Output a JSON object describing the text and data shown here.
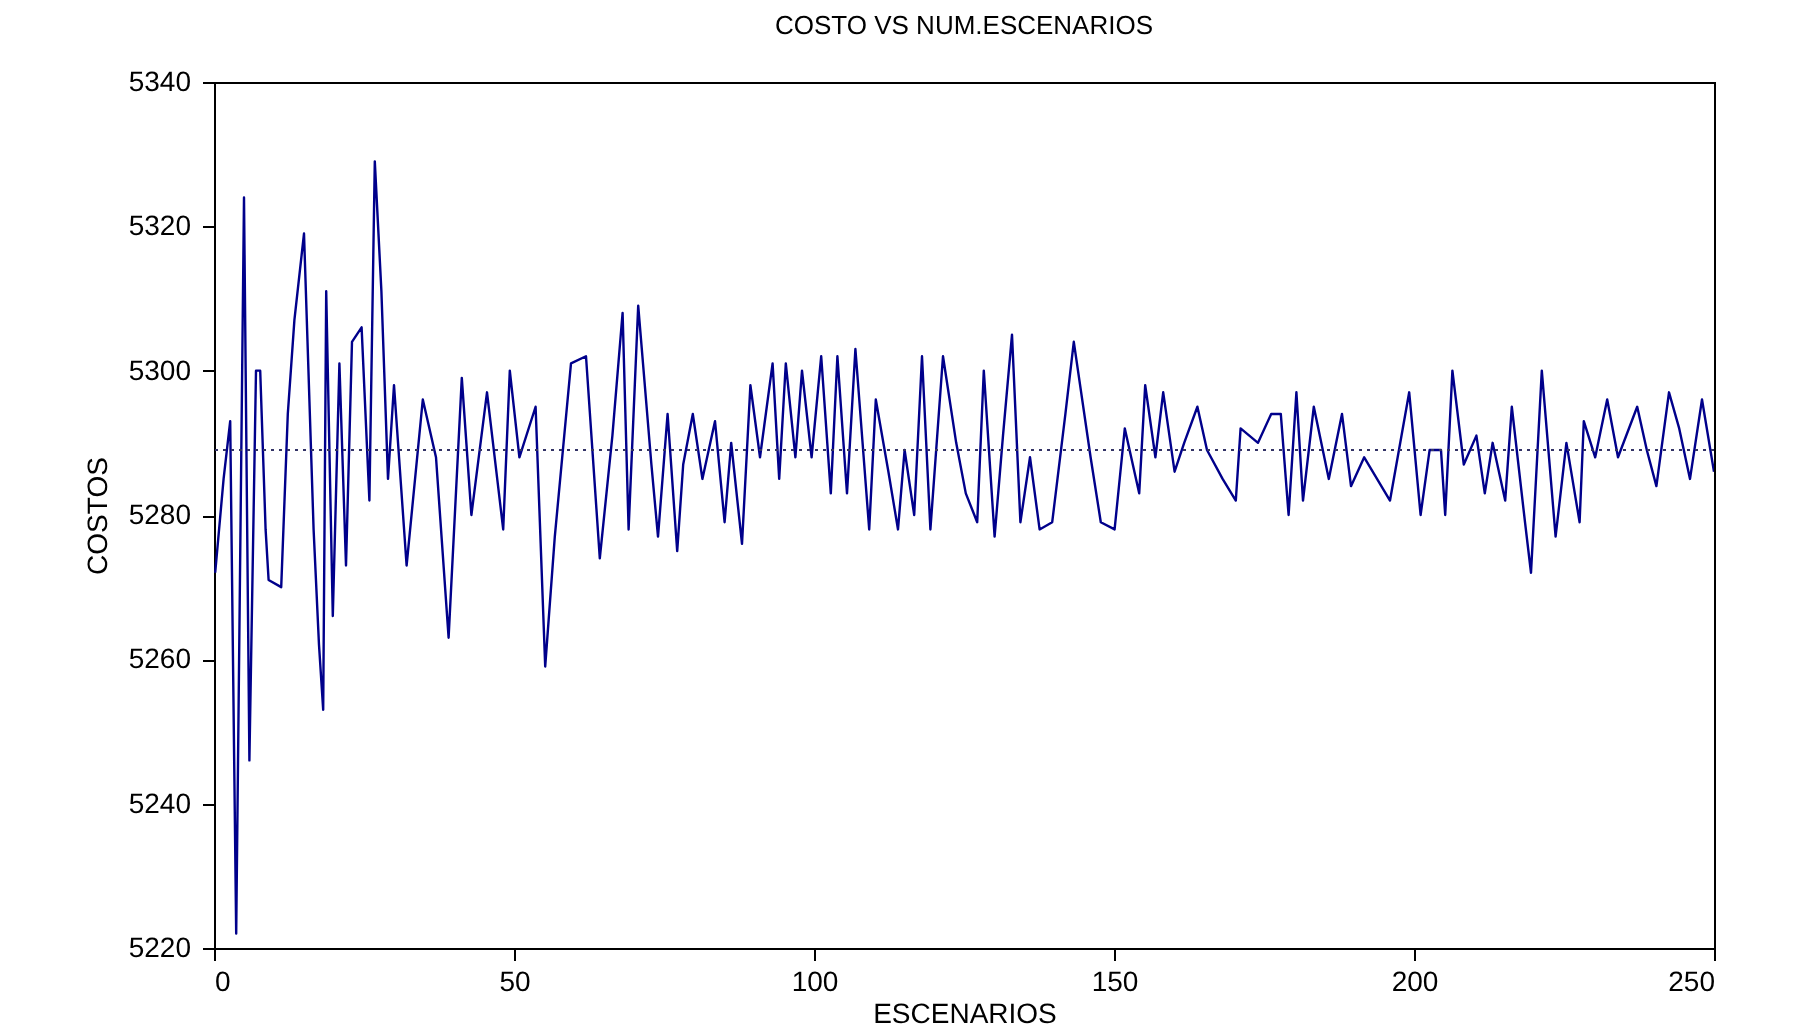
{
  "chart_data": {
    "type": "line",
    "title": "COSTO VS NUM.ESCENARIOS",
    "xlabel": "ESCENARIOS",
    "ylabel": "COSTOS",
    "xlim": [
      0,
      250
    ],
    "xticks": [
      0,
      50,
      100,
      150,
      200,
      250
    ],
    "ylim": [
      5220,
      5340
    ],
    "yticks": [
      5220,
      5240,
      5260,
      5280,
      5300,
      5320,
      5340
    ],
    "ref_lines": [
      {
        "axis": "y",
        "value": 5289,
        "color": "#333366",
        "line_style": "dotted"
      }
    ],
    "series": [
      {
        "color": "#00008b",
        "x": [
          0.2,
          1.6,
          2.7,
          3.7,
          5.0,
          5.9,
          7.0,
          7.7,
          8.6,
          9.1,
          11.2,
          12.3,
          13.4,
          15.0,
          16.6,
          17.5,
          18.2,
          18.7,
          19.8,
          20.9,
          22.0,
          23.0,
          24.6,
          25.9,
          26.8,
          27.9,
          29.0,
          30.0,
          32.1,
          34.8,
          37.0,
          39.1,
          41.3,
          42.9,
          45.5,
          48.2,
          49.3,
          50.9,
          53.6,
          55.2,
          56.8,
          59.5,
          62.0,
          64.3,
          66.4,
          68.1,
          69.1,
          70.7,
          72.9,
          74.0,
          75.6,
          77.2,
          78.2,
          79.8,
          81.4,
          83.5,
          85.1,
          86.2,
          88.0,
          89.4,
          91.0,
          93.1,
          94.2,
          95.3,
          96.9,
          98.0,
          99.6,
          101.2,
          102.8,
          103.9,
          105.5,
          106.9,
          109.2,
          110.3,
          112.4,
          114.0,
          115.1,
          116.7,
          118.0,
          119.4,
          121.5,
          123.7,
          125.3,
          127.2,
          128.3,
          130.1,
          131.5,
          133.0,
          134.4,
          136.0,
          137.6,
          139.7,
          141.9,
          143.3,
          146.1,
          147.8,
          150.1,
          151.8,
          154.2,
          155.2,
          156.9,
          158.2,
          160.1,
          161.7,
          163.9,
          165.5,
          168.1,
          170.3,
          171.1,
          174.0,
          176.2,
          177.8,
          179.1,
          180.4,
          181.5,
          183.3,
          185.8,
          188.0,
          189.5,
          191.7,
          196.0,
          199.2,
          201.1,
          202.6,
          204.5,
          205.2,
          206.4,
          208.3,
          210.4,
          211.8,
          213.1,
          215.2,
          216.3,
          218.5,
          219.5,
          221.3,
          223.6,
          225.4,
          227.6,
          228.3,
          230.2,
          232.2,
          234.0,
          237.2,
          238.8,
          240.4,
          242.5,
          244.2,
          246.0,
          248.0,
          250.0
        ],
        "values": [
          5272,
          5285,
          5293,
          5222,
          5324,
          5246,
          5300,
          5300,
          5278,
          5271,
          5270,
          5294,
          5307,
          5319,
          5278,
          5262,
          5253,
          5311,
          5266,
          5301,
          5273,
          5304,
          5306,
          5282,
          5329,
          5311,
          5285,
          5298,
          5273,
          5296,
          5288,
          5263,
          5299,
          5280,
          5297,
          5278,
          5300,
          5288,
          5295,
          5259,
          5277,
          5301,
          5302,
          5274,
          5291,
          5308,
          5278,
          5309,
          5287,
          5277,
          5294,
          5275,
          5287,
          5294,
          5285,
          5293,
          5279,
          5290,
          5276,
          5298,
          5288,
          5301,
          5285,
          5301,
          5288,
          5300,
          5288,
          5302,
          5283,
          5302,
          5283,
          5303,
          5278,
          5296,
          5286,
          5278,
          5289,
          5280,
          5302,
          5278,
          5302,
          5290,
          5283,
          5279,
          5300,
          5277,
          5291,
          5305,
          5279,
          5288,
          5278,
          5279,
          5294,
          5304,
          5288,
          5279,
          5278,
          5292,
          5283,
          5298,
          5288,
          5297,
          5286,
          5290,
          5295,
          5289,
          5285,
          5282,
          5292,
          5290,
          5294,
          5294,
          5280,
          5297,
          5282,
          5295,
          5285,
          5294,
          5284,
          5288,
          5282,
          5297,
          5280,
          5289,
          5289,
          5280,
          5300,
          5287,
          5291,
          5283,
          5290,
          5282,
          5295,
          5279,
          5272,
          5300,
          5277,
          5290,
          5279,
          5293,
          5288,
          5296,
          5288,
          5295,
          5289,
          5284,
          5297,
          5292,
          5285,
          5296,
          5286
        ]
      }
    ]
  }
}
